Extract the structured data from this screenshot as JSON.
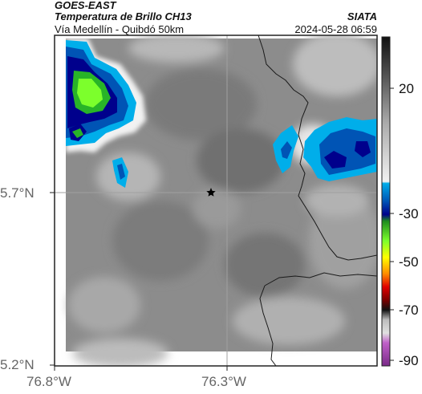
{
  "header": {
    "source": "GOES-EAST",
    "product": "Temperatura de Brillo CH13",
    "region": "Vía Medellín - Quibdó 50km",
    "brand": "SIATA",
    "timestamp": "2024-05-28 06:59"
  },
  "axes": {
    "lat_labels": [
      "5.7°N",
      "5.2°N"
    ],
    "lon_labels": [
      "76.8°W",
      "76.3°W"
    ]
  },
  "colorbar": {
    "labels": [
      "20",
      "-30",
      "-50",
      "-70",
      "-90"
    ],
    "colors": [
      "#111111",
      "#555555",
      "#aaaaaa",
      "#eeeeee",
      "#00aeea",
      "#0054b5",
      "#00008c",
      "#28b428",
      "#7cff2c",
      "#ffff00",
      "#ff8c00",
      "#e00000",
      "#7a0000",
      "#bdbdbd",
      "#9a30a8"
    ]
  },
  "map": {
    "marker": "star-icon",
    "background_color": "#8c8c8c"
  }
}
